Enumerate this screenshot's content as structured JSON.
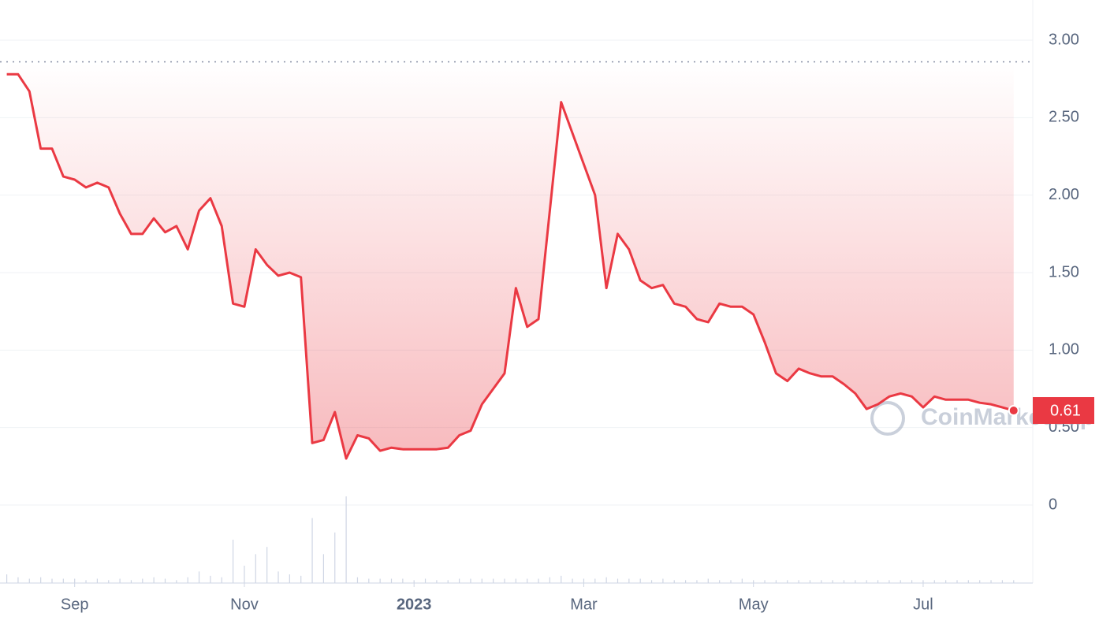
{
  "chart_data": {
    "type": "line",
    "categories": [
      null,
      null,
      null,
      null,
      null,
      null,
      "Sep",
      null,
      null,
      null,
      null,
      null,
      null,
      null,
      null,
      null,
      null,
      null,
      null,
      null,
      null,
      "Nov",
      null,
      null,
      null,
      null,
      null,
      null,
      null,
      null,
      null,
      null,
      null,
      null,
      null,
      null,
      "2023",
      null,
      null,
      null,
      null,
      null,
      null,
      null,
      null,
      null,
      null,
      null,
      null,
      null,
      null,
      "Mar",
      null,
      null,
      null,
      null,
      null,
      null,
      null,
      null,
      null,
      null,
      null,
      null,
      null,
      null,
      "May",
      null,
      null,
      null,
      null,
      null,
      null,
      null,
      null,
      null,
      null,
      null,
      null,
      null,
      null,
      "Jul",
      null,
      null,
      null,
      null,
      null,
      null,
      null,
      null
    ],
    "series": [
      {
        "color": "#ea3943",
        "values": [
          2.78,
          2.78,
          2.67,
          2.3,
          2.3,
          2.12,
          2.1,
          2.05,
          2.08,
          2.05,
          1.88,
          1.75,
          1.75,
          1.85,
          1.76,
          1.8,
          1.65,
          1.9,
          1.98,
          1.8,
          1.3,
          1.28,
          1.65,
          1.55,
          1.48,
          1.5,
          1.47,
          0.4,
          0.42,
          0.6,
          0.3,
          0.45,
          0.43,
          0.35,
          0.37,
          0.36,
          0.36,
          0.36,
          0.36,
          0.37,
          0.45,
          0.48,
          0.65,
          0.75,
          0.85,
          1.4,
          1.15,
          1.2,
          1.9,
          2.6,
          2.4,
          2.2,
          2.0,
          1.4,
          1.75,
          1.65,
          1.45,
          1.4,
          1.42,
          1.3,
          1.28,
          1.2,
          1.18,
          1.3,
          1.28,
          1.28,
          1.23,
          1.05,
          0.85,
          0.8,
          0.88,
          0.85,
          0.83,
          0.83,
          0.78,
          0.72,
          0.62,
          0.65,
          0.7,
          0.72,
          0.7,
          0.63,
          0.7,
          0.68,
          0.68,
          0.68,
          0.66,
          0.65,
          0.63,
          0.61
        ]
      }
    ],
    "volume": [
      6,
      4,
      3,
      4,
      3,
      3,
      3,
      2,
      3,
      2,
      3,
      2,
      3,
      4,
      3,
      2,
      4,
      8,
      5,
      4,
      30,
      12,
      20,
      25,
      8,
      6,
      5,
      45,
      20,
      35,
      60,
      4,
      3,
      3,
      3,
      3,
      2,
      3,
      2,
      2,
      3,
      3,
      3,
      3,
      3,
      3,
      3,
      3,
      4,
      5,
      3,
      3,
      3,
      4,
      3,
      3,
      3,
      2,
      3,
      2,
      2,
      2,
      3,
      2,
      2,
      3,
      2,
      2,
      2,
      2,
      2,
      2,
      2,
      2,
      2,
      2,
      2,
      2,
      2,
      2,
      2,
      2,
      2,
      2,
      2,
      2,
      2,
      2,
      2,
      2
    ],
    "baseline": 2.86,
    "ylim": [
      0,
      3
    ],
    "yticks": [
      {
        "value": 3,
        "label": "3.00"
      },
      {
        "value": 2.5,
        "label": "2.50"
      },
      {
        "value": 2,
        "label": "2.00"
      },
      {
        "value": 1.5,
        "label": "1.50"
      },
      {
        "value": 1,
        "label": "1.00"
      },
      {
        "value": 0.5,
        "label": "0.50"
      },
      0
    ],
    "grid": true,
    "watermark": "CoinMarketCap"
  }
}
